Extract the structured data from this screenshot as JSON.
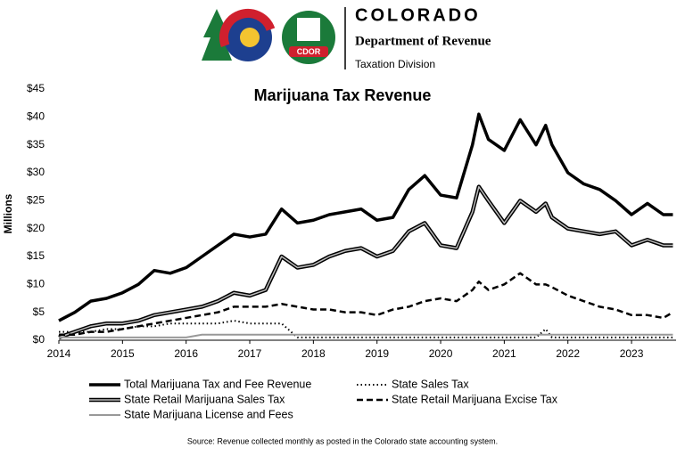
{
  "header": {
    "logo_text": "CDOR",
    "title": "COLORADO",
    "subtitle": "Department of Revenue",
    "division": "Taxation Division"
  },
  "chart_data": {
    "type": "line",
    "title": "Marijuana Tax Revenue",
    "y_label": "Millions",
    "note": "Source: Revenue collected monthly as posted in the Colorado state accounting system.",
    "x": [
      2014,
      2014.25,
      2014.5,
      2014.75,
      2015,
      2015.25,
      2015.5,
      2015.75,
      2016,
      2016.25,
      2016.5,
      2016.75,
      2017,
      2017.25,
      2017.5,
      2017.75,
      2018,
      2018.25,
      2018.5,
      2018.75,
      2019,
      2019.25,
      2019.5,
      2019.75,
      2020,
      2020.25,
      2020.5,
      2020.6,
      2020.75,
      2021,
      2021.25,
      2021.5,
      2021.65,
      2021.75,
      2022,
      2022.25,
      2022.5,
      2022.75,
      2023,
      2023.25,
      2023.5,
      2023.65
    ],
    "xlim": [
      2014,
      2023.7
    ],
    "xticks": [
      2014,
      2015,
      2016,
      2017,
      2018,
      2019,
      2020,
      2021,
      2022,
      2023
    ],
    "ylim": [
      0,
      45
    ],
    "yticks": [
      {
        "value": 0,
        "label": "$0"
      },
      {
        "value": 5,
        "label": "$5"
      },
      {
        "value": 10,
        "label": "$10"
      },
      {
        "value": 15,
        "label": "$15"
      },
      {
        "value": 20,
        "label": "$20"
      },
      {
        "value": 25,
        "label": "$25"
      },
      {
        "value": 30,
        "label": "$30"
      },
      {
        "value": 35,
        "label": "$35"
      },
      {
        "value": 40,
        "label": "$40"
      },
      {
        "value": 45,
        "label": "$45"
      }
    ],
    "series": [
      {
        "name": "Total Marijuana Tax and Fee Revenue",
        "color": "#000000",
        "style": "solid",
        "values": [
          3.5,
          5,
          7,
          7.5,
          8.5,
          10,
          12.5,
          12,
          13,
          15,
          17,
          19,
          18.5,
          19,
          23.5,
          21,
          21.5,
          22.5,
          23,
          23.5,
          21.5,
          22,
          27,
          29.5,
          26,
          25.5,
          35,
          40.5,
          36,
          34,
          39.5,
          35,
          38.5,
          35,
          30,
          28,
          27,
          25,
          22.5,
          24.5,
          22.5,
          22.5
        ]
      },
      {
        "name": "State Sales Tax",
        "color": "#000000",
        "style": "dotted",
        "values": [
          1.5,
          1.5,
          1.5,
          2,
          2,
          2.5,
          2.5,
          3,
          3,
          3,
          3,
          3.5,
          3,
          3,
          3,
          0.5,
          0.5,
          0.5,
          0.5,
          0.5,
          0.5,
          0.5,
          0.5,
          0.5,
          0.5,
          0.5,
          0.5,
          0.5,
          0.5,
          0.5,
          0.5,
          0.5,
          2,
          0.5,
          0.5,
          0.5,
          0.5,
          0.5,
          0.5,
          0.5,
          0.5,
          0.5
        ]
      },
      {
        "name": "State Retail Marijuana Sales Tax",
        "color": "#555555",
        "style": "double",
        "values": [
          0.5,
          1.5,
          2.5,
          3,
          3,
          3.5,
          4.5,
          5,
          5.5,
          6,
          7,
          8.5,
          8,
          9,
          15,
          13,
          13.5,
          15,
          16,
          16.5,
          15,
          16,
          19.5,
          21,
          17,
          16.5,
          23,
          27.5,
          25,
          21,
          25,
          23,
          24.5,
          22,
          20,
          19.5,
          19,
          19.5,
          17,
          18,
          17,
          17
        ]
      },
      {
        "name": "State Retail Marijuana Excise Tax",
        "color": "#000000",
        "style": "dashed",
        "values": [
          1,
          1,
          1.5,
          1.5,
          2,
          2.5,
          3,
          3.5,
          4,
          4.5,
          5,
          6,
          6,
          6,
          6.5,
          6,
          5.5,
          5.5,
          5,
          5,
          4.5,
          5.5,
          6,
          7,
          7.5,
          7,
          9,
          10.5,
          9,
          10,
          12,
          10,
          10,
          9.5,
          8,
          7,
          6,
          5.5,
          4.5,
          4.5,
          4,
          5
        ]
      },
      {
        "name": "State Marijuana License and Fees",
        "color": "#999999",
        "style": "solid",
        "values": [
          0.5,
          0.5,
          0.5,
          0.5,
          0.5,
          0.5,
          0.5,
          0.5,
          0.5,
          1,
          1,
          1,
          1,
          1,
          1,
          1,
          1,
          1,
          1,
          1,
          1,
          1,
          1,
          1,
          1,
          1,
          1,
          1,
          1,
          1,
          1,
          1,
          1,
          1,
          1,
          1,
          1,
          1,
          1,
          1,
          1,
          1
        ]
      }
    ]
  }
}
